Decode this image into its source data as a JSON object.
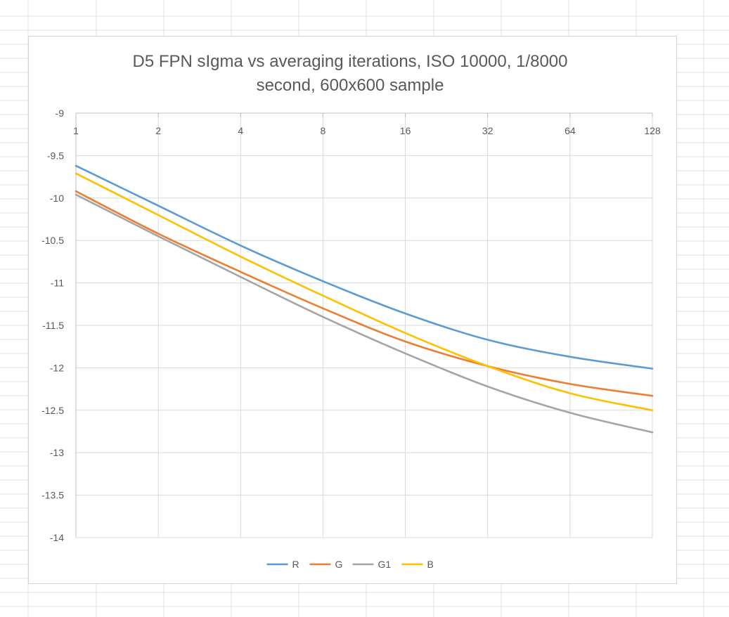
{
  "chart_data": {
    "type": "line",
    "title_lines": [
      "D5 FPN sIgma vs averaging iterations, ISO 10000, 1/8000",
      "second, 600x600 sample"
    ],
    "x_scale": "log2",
    "xlim": [
      1,
      128
    ],
    "ylim": [
      -14,
      -9
    ],
    "x_ticks": [
      1,
      2,
      4,
      8,
      16,
      32,
      64,
      128
    ],
    "y_ticks": [
      -9,
      -9.5,
      -10,
      -10.5,
      -11,
      -11.5,
      -12,
      -12.5,
      -13,
      -13.5,
      -14
    ],
    "x_axis_position": "top",
    "grid": true,
    "legend_position": "bottom",
    "x": [
      1,
      2,
      4,
      8,
      16,
      32,
      64,
      128
    ],
    "series": [
      {
        "name": "R",
        "color": "#5b9bd5",
        "values": [
          -9.62,
          -10.09,
          -10.56,
          -10.98,
          -11.36,
          -11.67,
          -11.87,
          -12.01
        ]
      },
      {
        "name": "G",
        "color": "#ed7d31",
        "values": [
          -9.92,
          -10.42,
          -10.87,
          -11.3,
          -11.69,
          -11.98,
          -12.19,
          -12.33
        ]
      },
      {
        "name": "G1",
        "color": "#a5a5a5",
        "values": [
          -9.96,
          -10.45,
          -10.93,
          -11.4,
          -11.83,
          -12.22,
          -12.53,
          -12.76
        ]
      },
      {
        "name": "B",
        "color": "#ffc000",
        "values": [
          -9.71,
          -10.2,
          -10.69,
          -11.15,
          -11.59,
          -11.98,
          -12.3,
          -12.5
        ]
      }
    ]
  }
}
